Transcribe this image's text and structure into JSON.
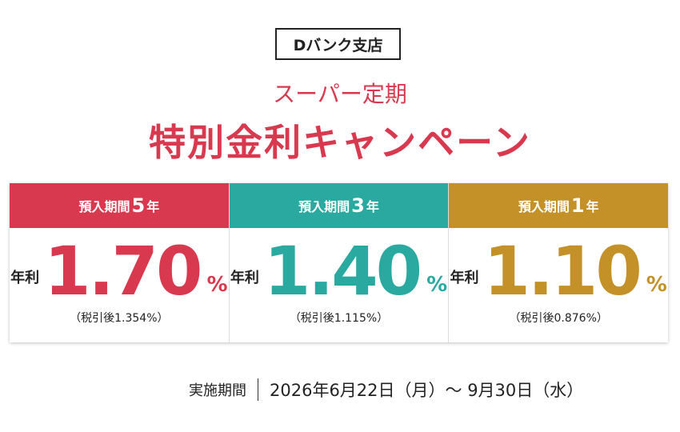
{
  "badge": "Dバンク支店",
  "subtitle": "スーパー定期",
  "title": "特別金利キャンペーン",
  "plans": [
    {
      "term_label": "預入期間",
      "term": "5",
      "term_unit": "年",
      "rate_label": "年利",
      "rate": "1.70",
      "rate_unit": "%",
      "after_tax": "（税引後1.354%）",
      "color": "#d9394e"
    },
    {
      "term_label": "預入期間",
      "term": "3",
      "term_unit": "年",
      "rate_label": "年利",
      "rate": "1.40",
      "rate_unit": "%",
      "after_tax": "（税引後1.115%）",
      "color": "#2aa9a0"
    },
    {
      "term_label": "預入期間",
      "term": "1",
      "term_unit": "年",
      "rate_label": "年利",
      "rate": "1.10",
      "rate_unit": "%",
      "after_tax": "（税引後0.876%）",
      "color": "#c49028"
    }
  ],
  "period": {
    "label": "実施期間",
    "dates": "2026年6月22日（月）～ 9月30日（水）"
  }
}
